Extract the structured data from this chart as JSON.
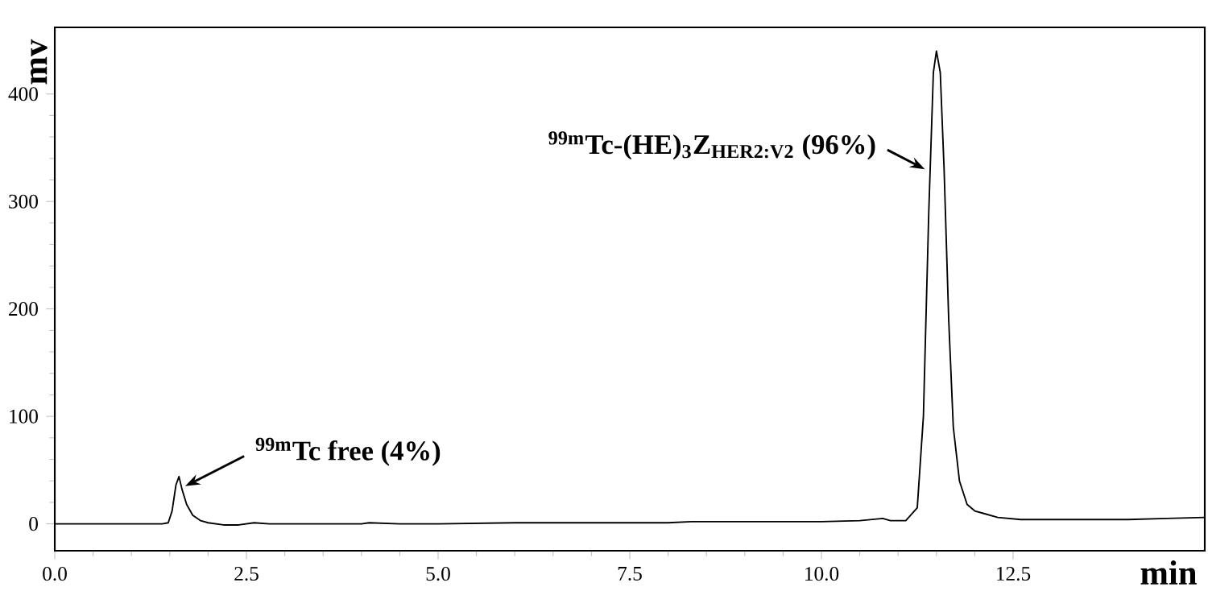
{
  "chart_data": {
    "type": "line",
    "xlabel": "min",
    "ylabel": "mv",
    "xlim": [
      0,
      15
    ],
    "ylim": [
      -25,
      462
    ],
    "xticks": [
      {
        "value": 0,
        "label": "0.0"
      },
      2.5,
      {
        "value": 5,
        "label": "5.0"
      },
      7.5,
      {
        "value": 10,
        "label": "10.0"
      },
      12.5
    ],
    "yticks": [
      0,
      100,
      200,
      300,
      400
    ],
    "marker": "none",
    "line_style": "solid",
    "series": [
      {
        "color": "#000000",
        "x": [
          0,
          0.5,
          1.0,
          1.4,
          1.48,
          1.53,
          1.58,
          1.62,
          1.66,
          1.72,
          1.8,
          1.9,
          2.0,
          2.2,
          2.4,
          2.6,
          2.8,
          3.5,
          4.0,
          4.1,
          4.5,
          5.0,
          6.0,
          7.0,
          8.0,
          8.3,
          9.0,
          10.0,
          10.5,
          10.8,
          10.9,
          11.1,
          11.25,
          11.33,
          11.4,
          11.46,
          11.5,
          11.55,
          11.6,
          11.66,
          11.72,
          11.8,
          11.9,
          12.0,
          12.1,
          12.3,
          12.6,
          13.0,
          14.0,
          14.5,
          15.0
        ],
        "values": [
          0,
          0,
          0,
          0,
          1,
          12,
          36,
          44,
          32,
          18,
          8,
          3,
          1,
          -1,
          -1,
          1,
          0,
          0,
          0,
          1,
          0,
          0,
          1,
          1,
          1,
          2,
          2,
          2,
          3,
          5,
          3,
          3,
          15,
          100,
          290,
          420,
          440,
          420,
          330,
          190,
          90,
          40,
          18,
          12,
          10,
          6,
          4,
          4,
          4,
          5,
          6
        ]
      }
    ],
    "annotations": [
      {
        "text": "$^{99m}$Tc free (4%)",
        "x": 1.7,
        "y": 35
      },
      {
        "text": "$^{99m}$Tc-(HE)$_{3}$Z$_{HER2:V2}$ (96%)",
        "x": 11.35,
        "y": 330
      }
    ]
  }
}
